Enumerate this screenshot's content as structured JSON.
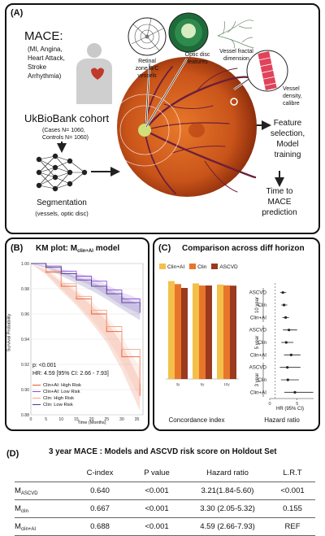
{
  "panel_a": {
    "label": "(A)",
    "mace_title": "MACE:",
    "mace_items": [
      "(MI, Angina,",
      "Heart Attack,",
      "Stroke",
      "Arrhythmia)"
    ],
    "cohort_title": "UkBioBank cohort",
    "cohort_cases": "(Cases N= 1060,",
    "cohort_controls": "Controls N= 1060)",
    "segmentation": [
      "Segmentation",
      "(vessels, optic disc)"
    ],
    "callout_retinal": [
      "Retinal",
      "zone B/C",
      "vessels"
    ],
    "callout_optic": [
      "Optic disc",
      "features"
    ],
    "callout_fractal": [
      "Vessel fractal",
      "dimension"
    ],
    "callout_density": [
      "Vessel",
      "density,",
      "calibre"
    ],
    "feature_step": [
      "Feature",
      "selection,",
      "Model",
      "training"
    ],
    "time_step": [
      "Time to",
      "MACE",
      "prediction"
    ],
    "colors": {
      "fundus_outer": "#b8410f",
      "fundus_inner": "#e8782a",
      "disc": "#cfe07a",
      "vessel": "#6b1f3a"
    }
  },
  "panel_b": {
    "label": "(B)",
    "title_prefix": "KM plot: M",
    "title_sub": "clin+AI",
    "title_suffix": " model",
    "ylabel": "Survival Probability",
    "xlabel": "Time (Months)",
    "p_text": "p: <0.001",
    "hr_text": "HR: 4.59 [95% CI: 2.66 - 7.93]",
    "legend": [
      {
        "name": "Clin+AI: High Risk",
        "color": "#e8572a"
      },
      {
        "name": "Clin+AI: Low Risk",
        "color": "#8b4fd8"
      },
      {
        "name": "Clin: High Risk",
        "color": "#f4a48a"
      },
      {
        "name": "Clin: Low Risk",
        "color": "#4a3a8a"
      }
    ]
  },
  "panel_c": {
    "label": "(C)",
    "title": "Comparison across diff horizon",
    "bar_legend": [
      {
        "name": "Clin+AI",
        "color": "#f4c04a"
      },
      {
        "name": "Clin",
        "color": "#e8762a"
      },
      {
        "name": "ASCVD",
        "color": "#9a3a1e"
      }
    ],
    "concordance_label": "Concordance index",
    "hazard_label": "Hazard ratio",
    "hr_axis_label": "HR (95% CI)",
    "horizons": [
      "10 year",
      "5 year",
      "3 year"
    ],
    "forest_rows": [
      "ASCVD",
      "Clin",
      "Clin+AI"
    ]
  },
  "panel_d": {
    "label": "(D)",
    "title": "3 year MACE : Models and ASCVD risk score on Holdout Set",
    "headers": [
      "",
      "C-index",
      "P value",
      "Hazard ratio",
      "L.R.T"
    ],
    "rows": [
      {
        "model_base": "M",
        "model_sub": "ASCVD",
        "cindex": "0.640",
        "pvalue": "<0.001",
        "hr": "3.21(1.84-5.60)",
        "lrt": "<0.001"
      },
      {
        "model_base": "M",
        "model_sub": "clin",
        "cindex": "0.667",
        "pvalue": "<0.001",
        "hr": "3.30 (2.05-5.32)",
        "lrt": "0.155"
      },
      {
        "model_base": "M",
        "model_sub": "clin+AI",
        "cindex": "0.688",
        "pvalue": "<0.001",
        "hr": "4.59 (2.66-7.93)",
        "lrt": "REF"
      }
    ]
  },
  "chart_data": [
    {
      "type": "line",
      "title": "KM plot: Mclin+AI model",
      "xlabel": "Time (Months)",
      "ylabel": "Survival Probability",
      "xlim": [
        0,
        37
      ],
      "ylim": [
        0.88,
        1.0
      ],
      "x_ticks": [
        0,
        5,
        10,
        15,
        20,
        25,
        30,
        35
      ],
      "y_ticks": [
        0.88,
        0.9,
        0.92,
        0.94,
        0.96,
        0.98,
        1.0
      ],
      "series": [
        {
          "name": "Clin+AI: High Risk",
          "x": [
            0,
            5,
            10,
            15,
            20,
            25,
            30,
            36
          ],
          "y": [
            1.0,
            0.993,
            0.982,
            0.972,
            0.96,
            0.946,
            0.926,
            0.895
          ]
        },
        {
          "name": "Clin+AI: Low Risk",
          "x": [
            0,
            5,
            10,
            15,
            20,
            25,
            30,
            36
          ],
          "y": [
            1.0,
            0.998,
            0.994,
            0.99,
            0.986,
            0.979,
            0.972,
            0.966
          ]
        },
        {
          "name": "Clin: High Risk",
          "x": [
            0,
            5,
            10,
            15,
            20,
            25,
            30,
            36
          ],
          "y": [
            1.0,
            0.994,
            0.984,
            0.974,
            0.963,
            0.95,
            0.932,
            0.905
          ]
        },
        {
          "name": "Clin: Low Risk",
          "x": [
            0,
            5,
            10,
            15,
            20,
            25,
            30,
            36
          ],
          "y": [
            1.0,
            0.997,
            0.992,
            0.987,
            0.982,
            0.976,
            0.969,
            0.961
          ]
        }
      ]
    },
    {
      "type": "bar",
      "xlabel": "Concordance index",
      "categories": [
        "3y",
        "5y",
        "10y"
      ],
      "ylim": [
        0,
        0.72
      ],
      "series": [
        {
          "name": "Clin+AI",
          "values": [
            0.688,
            0.672,
            0.664
          ]
        },
        {
          "name": "Clin",
          "values": [
            0.667,
            0.657,
            0.658
          ]
        },
        {
          "name": "ASCVD",
          "values": [
            0.64,
            0.657,
            0.656
          ]
        }
      ]
    },
    {
      "type": "scatter",
      "xlabel": "HR (95% CI)",
      "xlim": [
        0,
        8
      ],
      "x_ticks": [
        0,
        5
      ],
      "rows": [
        {
          "horizon": "10 year",
          "model": "ASCVD",
          "hr": 2.4,
          "lo": 1.9,
          "hi": 3.0
        },
        {
          "horizon": "10 year",
          "model": "Clin",
          "hr": 2.6,
          "lo": 2.1,
          "hi": 3.2
        },
        {
          "horizon": "10 year",
          "model": "Clin+AI",
          "hr": 2.9,
          "lo": 2.3,
          "hi": 3.5
        },
        {
          "horizon": "5 year",
          "model": "ASCVD",
          "hr": 3.5,
          "lo": 2.4,
          "hi": 5.0
        },
        {
          "horizon": "5 year",
          "model": "Clin",
          "hr": 3.0,
          "lo": 2.1,
          "hi": 4.3
        },
        {
          "horizon": "5 year",
          "model": "Clin+AI",
          "hr": 3.9,
          "lo": 2.6,
          "hi": 5.6
        },
        {
          "horizon": "3 year",
          "model": "ASCVD",
          "hr": 3.21,
          "lo": 1.84,
          "hi": 5.6
        },
        {
          "horizon": "3 year",
          "model": "Clin",
          "hr": 3.3,
          "lo": 2.05,
          "hi": 5.32
        },
        {
          "horizon": "3 year",
          "model": "Clin+AI",
          "hr": 4.59,
          "lo": 2.66,
          "hi": 7.93
        }
      ]
    }
  ]
}
